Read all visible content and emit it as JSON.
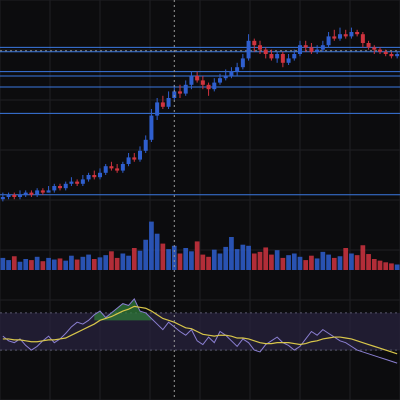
{
  "chart_data": {
    "type": "candlestick",
    "grid": true,
    "legend": "none",
    "colors": {
      "background": "#0c0c0e",
      "grid": "#1f1f24",
      "up": "#2f5fcf",
      "down": "#d0343f",
      "level_line": "#3a78e0",
      "dashed_line": "#8a8a8a",
      "oscillator_line": "#8a7fd1",
      "oscillator_signal": "#d8c64a",
      "oscillator_band": "#2a2440",
      "oscillator_fill": "#2f7a3a"
    },
    "price": {
      "ylim": [
        0,
        100
      ],
      "horizontal_levels": [
        16,
        53,
        65,
        70,
        72,
        81,
        83
      ],
      "dashed_levels": [
        81.5
      ],
      "candles": [
        [
          14,
          15,
          17,
          13
        ],
        [
          15,
          16,
          17,
          14
        ],
        [
          16,
          15,
          17,
          14
        ],
        [
          15,
          16,
          18,
          14
        ],
        [
          16,
          17,
          18,
          15
        ],
        [
          17,
          16,
          18,
          15
        ],
        [
          16,
          18,
          19,
          15
        ],
        [
          18,
          17,
          19,
          16
        ],
        [
          17,
          18,
          20,
          17
        ],
        [
          18,
          20,
          21,
          17
        ],
        [
          20,
          19,
          21,
          18
        ],
        [
          19,
          21,
          22,
          18
        ],
        [
          21,
          22,
          24,
          20
        ],
        [
          22,
          21,
          23,
          20
        ],
        [
          21,
          23,
          25,
          20
        ],
        [
          23,
          25,
          26,
          22
        ],
        [
          25,
          24,
          27,
          23
        ],
        [
          24,
          26,
          28,
          23
        ],
        [
          26,
          29,
          30,
          25
        ],
        [
          29,
          28,
          31,
          27
        ],
        [
          28,
          27,
          30,
          26
        ],
        [
          27,
          30,
          31,
          26
        ],
        [
          30,
          33,
          35,
          29
        ],
        [
          33,
          32,
          35,
          31
        ],
        [
          32,
          36,
          38,
          31
        ],
        [
          36,
          41,
          43,
          35
        ],
        [
          41,
          52,
          55,
          40
        ],
        [
          52,
          58,
          60,
          50
        ],
        [
          58,
          56,
          61,
          55
        ],
        [
          56,
          60,
          63,
          55
        ],
        [
          60,
          63,
          66,
          59
        ],
        [
          63,
          62,
          66,
          60
        ],
        [
          62,
          66,
          68,
          61
        ],
        [
          66,
          70,
          72,
          64
        ],
        [
          70,
          68,
          72,
          67
        ],
        [
          68,
          66,
          70,
          64
        ],
        [
          66,
          64,
          67,
          61
        ],
        [
          64,
          67,
          69,
          63
        ],
        [
          67,
          69,
          71,
          66
        ],
        [
          69,
          70,
          73,
          68
        ],
        [
          70,
          72,
          74,
          69
        ],
        [
          72,
          74,
          76,
          70
        ],
        [
          74,
          78,
          80,
          73
        ],
        [
          78,
          86,
          89,
          77
        ],
        [
          86,
          84,
          87,
          81
        ],
        [
          84,
          82,
          86,
          80
        ],
        [
          82,
          80,
          83,
          78
        ],
        [
          80,
          78,
          82,
          77
        ],
        [
          78,
          80,
          81,
          76
        ],
        [
          80,
          76,
          81,
          74
        ],
        [
          76,
          78,
          80,
          75
        ],
        [
          78,
          80,
          82,
          77
        ],
        [
          80,
          84,
          86,
          79
        ],
        [
          84,
          83,
          86,
          81
        ],
        [
          83,
          81,
          85,
          80
        ],
        [
          81,
          82,
          84,
          80
        ],
        [
          82,
          84,
          86,
          81
        ],
        [
          84,
          88,
          90,
          83
        ],
        [
          88,
          87,
          91,
          86
        ],
        [
          87,
          89,
          92,
          86
        ],
        [
          89,
          88,
          91,
          87
        ],
        [
          88,
          90,
          92,
          87
        ],
        [
          90,
          89,
          91,
          88
        ],
        [
          89,
          85,
          90,
          83
        ],
        [
          85,
          83,
          86,
          82
        ],
        [
          83,
          82,
          84,
          80
        ],
        [
          82,
          81,
          83,
          80
        ],
        [
          81,
          80,
          82,
          79
        ],
        [
          80,
          79,
          81,
          78
        ],
        [
          79,
          80,
          81,
          78
        ]
      ]
    },
    "volume": {
      "ylim": [
        0,
        100
      ],
      "values": [
        22,
        18,
        25,
        15,
        20,
        18,
        24,
        16,
        22,
        19,
        21,
        17,
        26,
        19,
        24,
        28,
        20,
        23,
        27,
        34,
        22,
        30,
        26,
        40,
        35,
        55,
        88,
        66,
        48,
        38,
        44,
        30,
        40,
        34,
        52,
        28,
        24,
        37,
        30,
        42,
        60,
        38,
        46,
        44,
        30,
        33,
        41,
        28,
        36,
        22,
        27,
        30,
        24,
        18,
        26,
        21,
        33,
        28,
        22,
        25,
        40,
        30,
        27,
        45,
        29,
        20,
        17,
        14,
        12,
        10
      ]
    },
    "oscillator": {
      "ylim": [
        0,
        100
      ],
      "band": [
        30,
        70
      ],
      "values": [
        45,
        40,
        38,
        42,
        35,
        30,
        34,
        40,
        45,
        38,
        42,
        48,
        55,
        60,
        58,
        62,
        68,
        72,
        65,
        70,
        75,
        80,
        78,
        85,
        72,
        70,
        64,
        58,
        52,
        60,
        55,
        50,
        46,
        52,
        40,
        36,
        44,
        38,
        50,
        46,
        40,
        34,
        42,
        38,
        30,
        28,
        36,
        40,
        44,
        38,
        35,
        30,
        34,
        42,
        50,
        46,
        52,
        48,
        44,
        40,
        38,
        34,
        30,
        28,
        26,
        24,
        22,
        20,
        18,
        16
      ],
      "signal": [
        42,
        42,
        41,
        41,
        40,
        39,
        39,
        40,
        41,
        41,
        42,
        43,
        46,
        49,
        52,
        55,
        58,
        62,
        64,
        66,
        69,
        72,
        74,
        77,
        76,
        75,
        72,
        68,
        64,
        62,
        60,
        57,
        54,
        53,
        50,
        47,
        46,
        45,
        46,
        46,
        45,
        43,
        43,
        42,
        40,
        38,
        37,
        37,
        38,
        38,
        38,
        37,
        36,
        37,
        39,
        40,
        42,
        43,
        44,
        44,
        43,
        42,
        40,
        38,
        36,
        34,
        32,
        30,
        28,
        26
      ],
      "fill_threshold": 62
    },
    "crosshair": {
      "x_index": 30,
      "y_value": 83
    }
  }
}
